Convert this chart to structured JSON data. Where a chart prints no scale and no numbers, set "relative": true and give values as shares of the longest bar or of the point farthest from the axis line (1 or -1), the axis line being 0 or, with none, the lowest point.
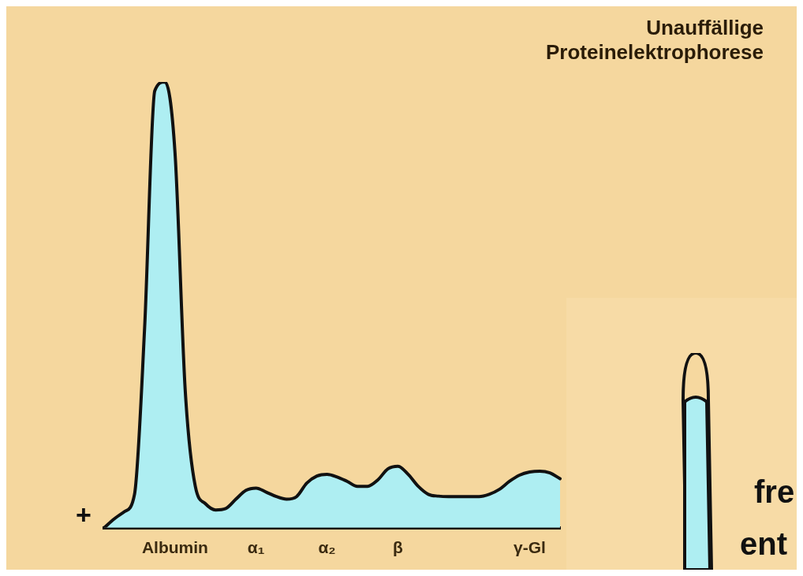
{
  "chart_data": {
    "type": "area",
    "title": "Unauffällige Proteinelektrophorese",
    "relative": true,
    "color": "#aeeef2",
    "categories": [
      null,
      null,
      null,
      null,
      null,
      null,
      null,
      "Albumin",
      null,
      null,
      null,
      null,
      null,
      null,
      null,
      "α₁",
      null,
      null,
      null,
      null,
      null,
      null,
      "α₂",
      null,
      null,
      null,
      null,
      null,
      null,
      "β",
      null,
      null,
      null,
      null,
      null,
      null,
      null,
      null,
      null,
      null,
      null,
      null,
      "γ-Gl",
      null,
      null,
      null
    ],
    "values": [
      0,
      0.02,
      0.036,
      0.075,
      0.45,
      0.98,
      1.0,
      0.84,
      0.31,
      0.093,
      0.054,
      0.04,
      0.043,
      0.064,
      0.084,
      0.089,
      0.08,
      0.07,
      0.064,
      0.07,
      0.1,
      0.116,
      0.12,
      0.114,
      0.104,
      0.093,
      0.093,
      0.107,
      0.132,
      0.138,
      0.12,
      0.093,
      0.075,
      0.071,
      0.07,
      0.07,
      0.07,
      0.07,
      0.075,
      0.086,
      0.104,
      0.118,
      0.125,
      0.127,
      0.123,
      0.11
    ],
    "annotations": [
      "+",
      "fre",
      "ent"
    ]
  }
}
